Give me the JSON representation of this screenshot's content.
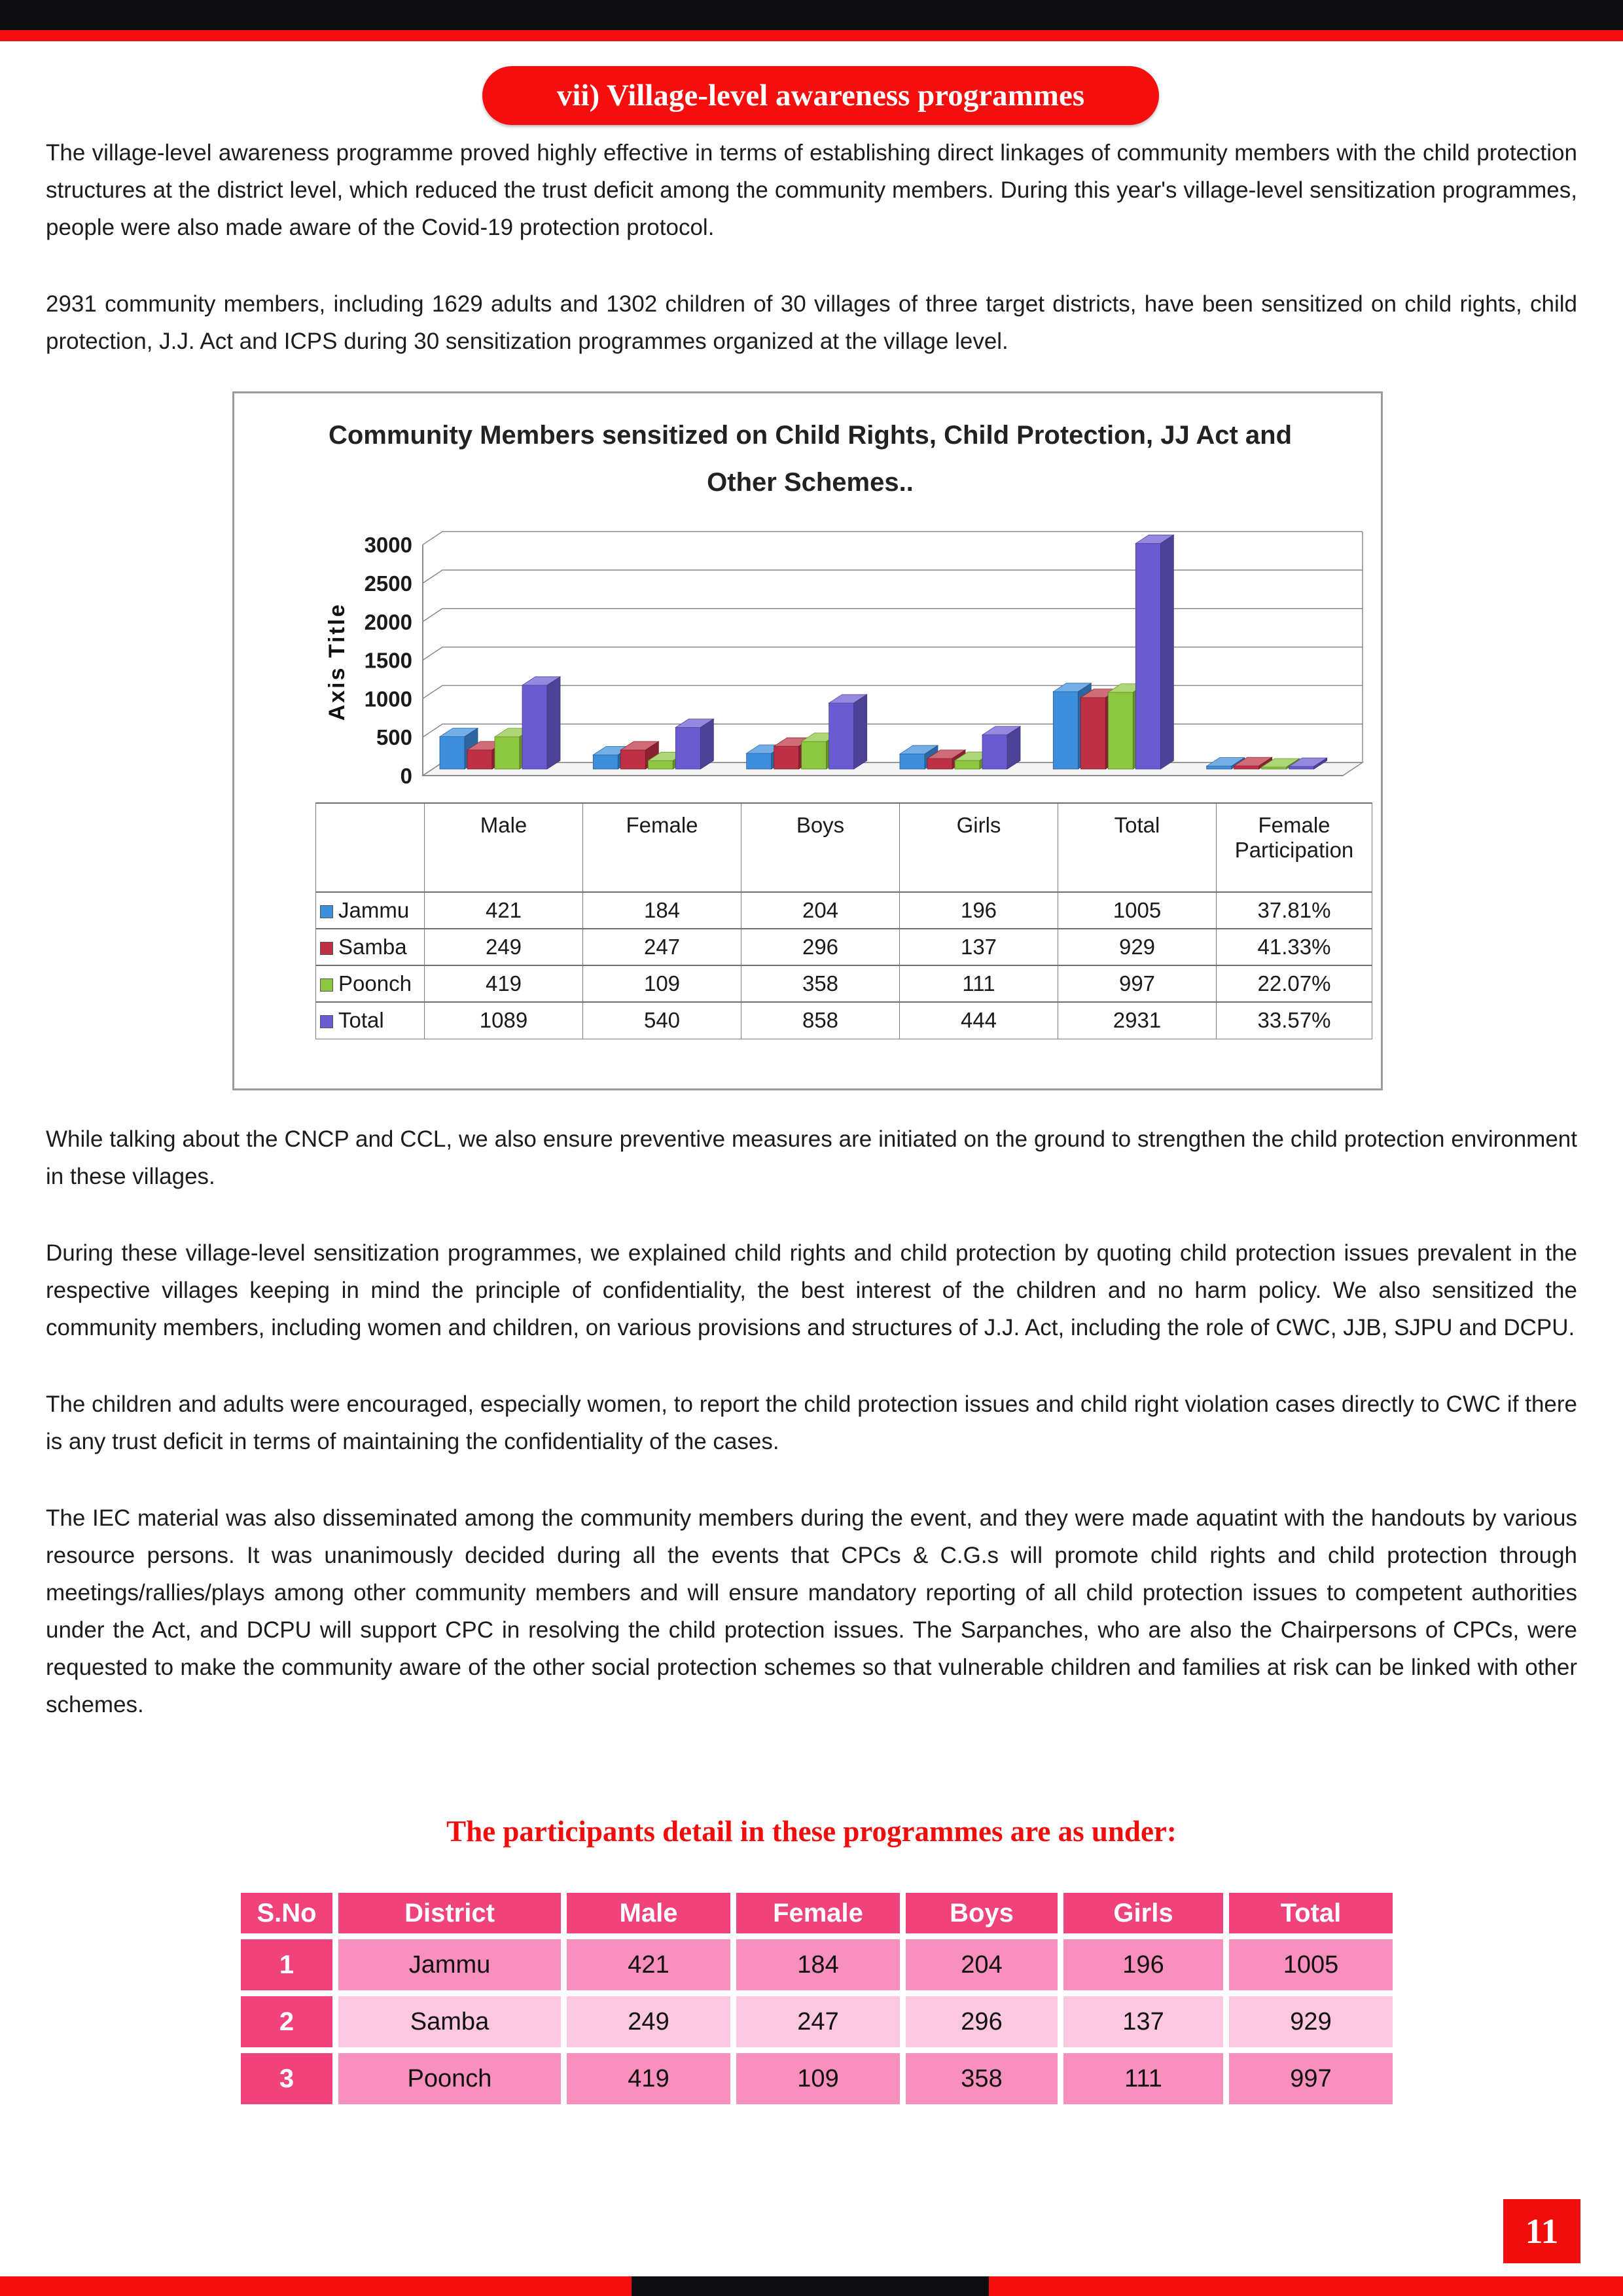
{
  "header": {
    "pill_title": "vii) Village-level awareness programmes"
  },
  "colors": {
    "accent_red": "#f20d0d",
    "band_black": "#0d0d10",
    "table_header_pink": "#f0437c",
    "table_row_medium_pink": "#f88fbc",
    "table_row_light_pink": "#fbc8df"
  },
  "body": {
    "intro_paragraphs": [
      "The village-level awareness programme proved highly effective in terms of establishing direct linkages of community members with the child protection structures at the district level, which reduced the trust deficit among the community members. During this year's village-level sensitization programmes, people were also made aware of the Covid-19 protection protocol.",
      "2931 community members, including 1629 adults and 1302 children of 30 villages of three target districts, have been sensitized on child rights, child protection, J.J. Act and ICPS during 30 sensitization programmes organized at the village level."
    ],
    "after_chart_paragraphs": [
      "While talking about the CNCP and CCL, we also ensure preventive measures are initiated on the ground to strengthen the child protection environment in these villages.",
      "During these village-level sensitization programmes, we explained child rights and child protection by quoting child protection issues prevalent in the respective villages keeping in mind the principle of confidentiality, the best interest of the children and no harm policy. We also sensitized the community members, including women and children, on various provisions and structures of J.J. Act, including the role of CWC, JJB, SJPU and DCPU.",
      "The children and adults were encouraged, especially women, to report the child protection issues and child right violation cases directly to CWC if there is any trust deficit in terms of maintaining the confidentiality of the cases.",
      "The IEC material was also disseminated among the community members during the event, and they were made aquatint with the handouts by various resource persons. It was unanimously decided during all the events that CPCs & C.G.s will promote child rights and child protection through meetings/rallies/plays among other community members and will ensure mandatory reporting of all child protection issues to competent authorities under the Act, and DCPU will support CPC in resolving the child protection issues. The Sarpanches, who are also the Chairpersons of CPCs, were requested to make the community aware of the other social protection schemes so that vulnerable children and families at risk can be linked with other schemes."
    ]
  },
  "chart_data": {
    "type": "bar",
    "style": "3d-clustered-column",
    "title": "Community Members sensitized on Child Rights, Child Protection, JJ Act and Other Schemes..",
    "axis_title": "Axis Title",
    "y_ticks": [
      0,
      500,
      1000,
      1500,
      2000,
      2500,
      3000
    ],
    "ylim": [
      0,
      3000
    ],
    "grid": true,
    "legend_position": "table-left",
    "categories": [
      "Male",
      "Female",
      "Boys",
      "Girls",
      "Total",
      "Female Participation"
    ],
    "series": [
      {
        "name": "Jammu",
        "color": "#3e8ede",
        "values": [
          421,
          184,
          204,
          196,
          1005
        ],
        "pct_label": "37.81%",
        "pct_value": 37.81
      },
      {
        "name": "Samba",
        "color": "#be3144",
        "values": [
          249,
          247,
          296,
          137,
          929
        ],
        "pct_label": "41.33%",
        "pct_value": 41.33
      },
      {
        "name": "Poonch",
        "color": "#8dc63f",
        "values": [
          419,
          109,
          358,
          111,
          997
        ],
        "pct_label": "22.07%",
        "pct_value": 22.07
      },
      {
        "name": "Total",
        "color": "#6b5bd2",
        "values": [
          1089,
          540,
          858,
          444,
          2931
        ],
        "pct_label": "33.57%",
        "pct_value": 33.57
      }
    ]
  },
  "participants": {
    "heading": "The participants detail in these programmes are as under:",
    "headers": [
      "S.No",
      "District",
      "Male",
      "Female",
      "Boys",
      "Girls",
      "Total"
    ],
    "rows": [
      {
        "sno": "1",
        "cells": [
          "Jammu",
          "421",
          "184",
          "204",
          "196",
          "1005"
        ],
        "shade": "medium"
      },
      {
        "sno": "2",
        "cells": [
          "Samba",
          "249",
          "247",
          "296",
          "137",
          "929"
        ],
        "shade": "light"
      },
      {
        "sno": "3",
        "cells": [
          "Poonch",
          "419",
          "109",
          "358",
          "111",
          "997"
        ],
        "shade": "medium"
      }
    ]
  },
  "page_number": "11"
}
